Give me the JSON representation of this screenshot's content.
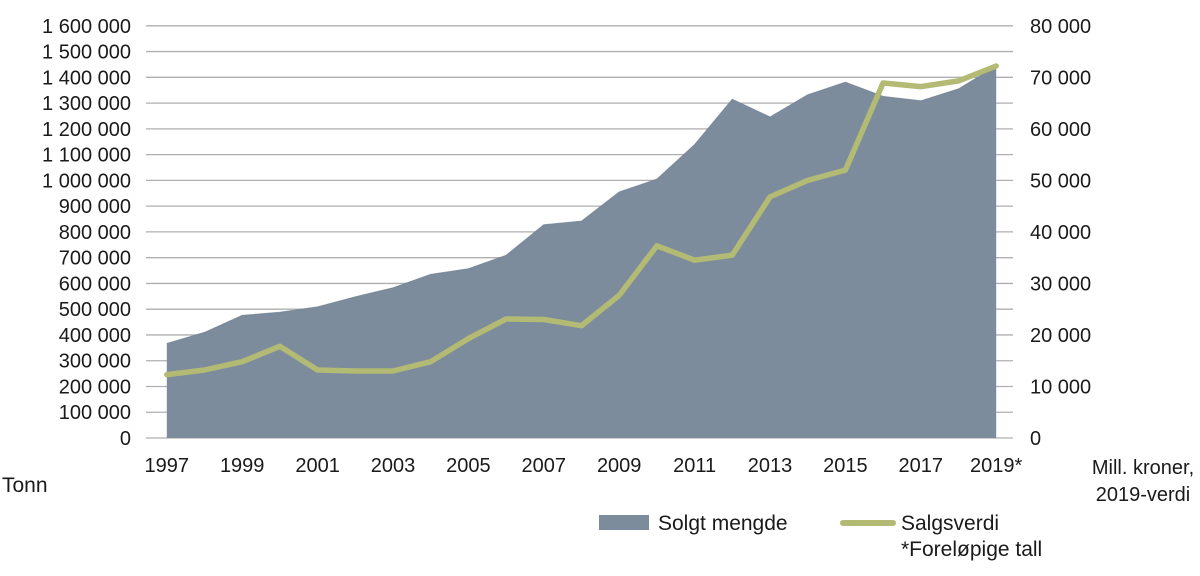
{
  "figure": {
    "left_axis_unit": "Tonn",
    "right_axis_unit_line1": "Mill. kroner,",
    "right_axis_unit_line2": "2019-verdi",
    "footnote": "*Foreløpige tall"
  },
  "legend": {
    "area_label": "Solgt mengde",
    "line_label": "Salgsverdi"
  },
  "colors": {
    "area_fill": "#7C8C9C",
    "area_edge": "#6D7E8E",
    "line": "#B2BA73",
    "gridline": "#AFAFAF",
    "text": "#1A1A1A"
  },
  "chart_data": {
    "type": "area+line",
    "title": "",
    "x": [
      1997,
      1998,
      1999,
      2000,
      2001,
      2002,
      2003,
      2004,
      2005,
      2006,
      2007,
      2008,
      2009,
      2010,
      2011,
      2012,
      2013,
      2014,
      2015,
      2016,
      2017,
      2018,
      2019
    ],
    "x_tick_labels": [
      "1997",
      "1999",
      "2001",
      "2003",
      "2005",
      "2007",
      "2009",
      "2011",
      "2013",
      "2015",
      "2017",
      "2019*"
    ],
    "series": [
      {
        "name": "Solgt mengde",
        "type": "area",
        "axis": "left",
        "unit": "tonn",
        "values": [
          367000,
          410000,
          476000,
          488000,
          509000,
          548000,
          583000,
          635000,
          657000,
          709000,
          828000,
          842000,
          955000,
          1005000,
          1139000,
          1315000,
          1246000,
          1332000,
          1381000,
          1326000,
          1309000,
          1355000,
          1444000
        ]
      },
      {
        "name": "Salgsverdi",
        "type": "line",
        "axis": "right",
        "unit": "mill. kroner, 2019-verdi",
        "values": [
          12300,
          13200,
          14800,
          17800,
          13200,
          13000,
          13000,
          14800,
          19300,
          23100,
          23000,
          21800,
          27700,
          37300,
          34500,
          35500,
          46800,
          50000,
          52000,
          68900,
          68200,
          69300,
          72200
        ]
      }
    ],
    "left_axis": {
      "label": "Tonn",
      "min": 0,
      "max": 1600000,
      "tick_step": 100000
    },
    "right_axis": {
      "label": "Mill. kroner, 2019-verdi",
      "min": 0,
      "max": 80000,
      "grid_step": 5000,
      "label_step": 10000
    },
    "grid": true,
    "legend_position": "bottom",
    "footnote": "*Foreløpige tall"
  }
}
